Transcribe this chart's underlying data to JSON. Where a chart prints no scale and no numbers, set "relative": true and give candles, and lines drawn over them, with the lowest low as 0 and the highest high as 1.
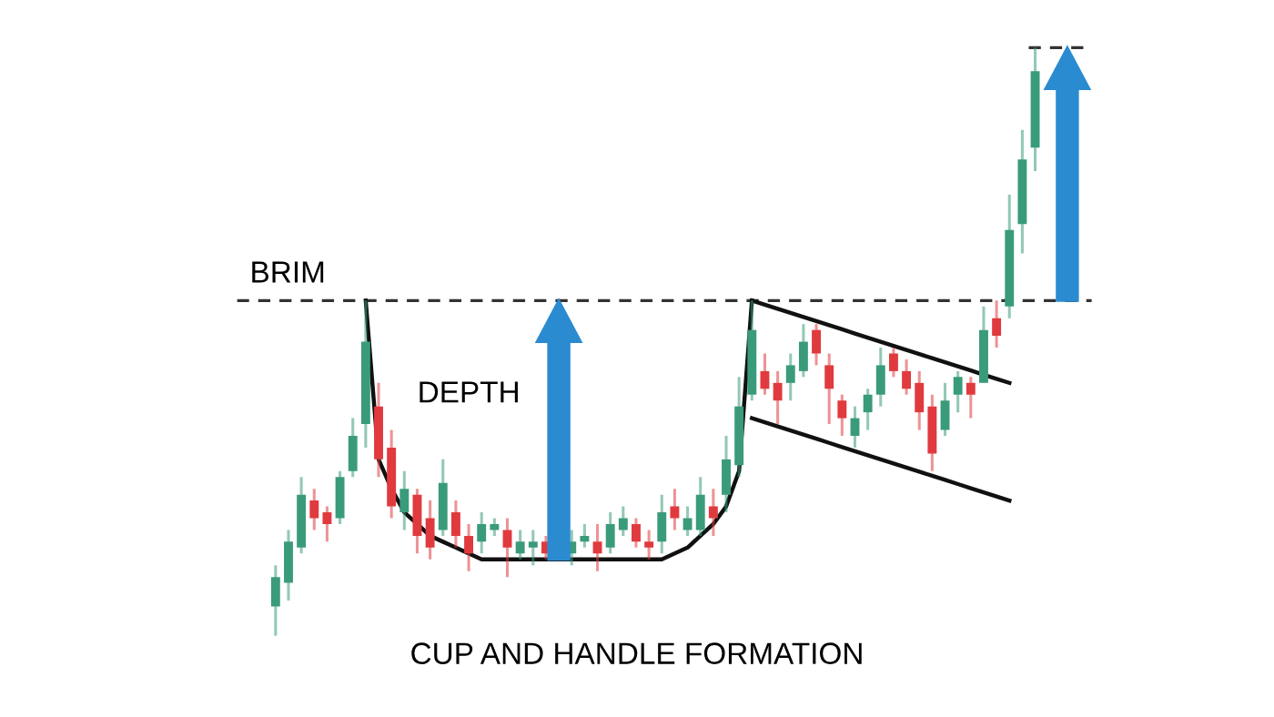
{
  "chart_data": {
    "type": "candlestick",
    "title": "CUP AND HANDLE FORMATION",
    "relative": true,
    "categories": [
      null,
      null,
      null,
      null,
      null,
      null,
      null,
      null,
      null,
      null,
      null,
      null,
      null,
      null,
      null,
      null,
      null,
      null,
      null,
      null,
      null,
      null,
      null,
      null,
      null,
      null,
      null,
      null,
      null,
      null,
      null,
      null,
      null,
      null,
      null,
      null,
      null,
      null,
      null,
      null,
      null,
      null,
      null,
      null,
      null,
      null,
      null,
      null,
      null,
      null,
      null,
      null,
      null,
      null,
      null,
      null,
      null,
      null,
      null,
      null
    ],
    "ohlc": [
      [
        0.05,
        0.12,
        0,
        0.1
      ],
      [
        0.09,
        0.18,
        0.06,
        0.16
      ],
      [
        0.15,
        0.27,
        0.14,
        0.24
      ],
      [
        0.23,
        0.25,
        0.18,
        0.2
      ],
      [
        0.21,
        0.22,
        0.16,
        0.19
      ],
      [
        0.2,
        0.28,
        0.19,
        0.27
      ],
      [
        0.28,
        0.37,
        0.27,
        0.34
      ],
      [
        0.36,
        0.57,
        0.32,
        0.5
      ],
      [
        0.39,
        0.43,
        0.27,
        0.3
      ],
      [
        0.32,
        0.35,
        0.2,
        0.22
      ],
      [
        0.21,
        0.28,
        0.18,
        0.25
      ],
      [
        0.24,
        0.25,
        0.14,
        0.17
      ],
      [
        0.2,
        0.23,
        0.13,
        0.15
      ],
      [
        0.18,
        0.3,
        0.17,
        0.26
      ],
      [
        0.21,
        0.23,
        0.15,
        0.17
      ],
      [
        0.17,
        0.19,
        0.11,
        0.14
      ],
      [
        0.16,
        0.21,
        0.14,
        0.19
      ],
      [
        0.18,
        0.2,
        0.17,
        0.19
      ],
      [
        0.18,
        0.2,
        0.1,
        0.15
      ],
      [
        0.14,
        0.18,
        0.13,
        0.16
      ],
      [
        0.15,
        0.18,
        0.12,
        0.16
      ],
      [
        0.16,
        0.17,
        0.13,
        0.14
      ],
      null,
      [
        0.14,
        0.18,
        0.12,
        0.16
      ],
      [
        0.16,
        0.19,
        0.15,
        0.17
      ],
      [
        0.16,
        0.19,
        0.11,
        0.14
      ],
      [
        0.15,
        0.21,
        0.14,
        0.19
      ],
      [
        0.18,
        0.22,
        0.17,
        0.2
      ],
      [
        0.19,
        0.2,
        0.15,
        0.16
      ],
      [
        0.16,
        0.18,
        0.13,
        0.15
      ],
      [
        0.16,
        0.24,
        0.14,
        0.21
      ],
      [
        0.22,
        0.25,
        0.18,
        0.2
      ],
      [
        0.18,
        0.22,
        0.17,
        0.2
      ],
      [
        0.18,
        0.27,
        0.17,
        0.24
      ],
      [
        0.22,
        0.25,
        0.17,
        0.2
      ],
      [
        0.24,
        0.34,
        0.21,
        0.3
      ],
      [
        0.29,
        0.44,
        0.27,
        0.39
      ],
      [
        0.41,
        0.57,
        0.4,
        0.52
      ],
      [
        0.45,
        0.48,
        0.41,
        0.42
      ],
      [
        0.43,
        0.45,
        0.36,
        0.4
      ],
      [
        0.43,
        0.48,
        0.4,
        0.46
      ],
      [
        0.45,
        0.53,
        0.44,
        0.5
      ],
      [
        0.52,
        0.53,
        0.46,
        0.48
      ],
      [
        0.46,
        0.48,
        0.36,
        0.42
      ],
      [
        0.4,
        0.41,
        0.34,
        0.37
      ],
      [
        0.34,
        0.39,
        0.32,
        0.37
      ],
      [
        0.38,
        0.42,
        0.35,
        0.41
      ],
      [
        0.41,
        0.49,
        0.39,
        0.46
      ],
      [
        0.48,
        0.49,
        0.44,
        0.45
      ],
      [
        0.45,
        0.47,
        0.41,
        0.42
      ],
      [
        0.43,
        0.45,
        0.35,
        0.38
      ],
      [
        0.39,
        0.41,
        0.28,
        0.31
      ],
      [
        0.35,
        0.43,
        0.34,
        0.4
      ],
      [
        0.41,
        0.45,
        0.38,
        0.44
      ],
      [
        0.43,
        0.44,
        0.37,
        0.41
      ],
      [
        0.43,
        0.56,
        0.43,
        0.52
      ],
      [
        0.54,
        0.57,
        0.49,
        0.51
      ],
      [
        0.56,
        0.75,
        0.54,
        0.69
      ],
      [
        0.7,
        0.86,
        0.65,
        0.81
      ],
      [
        0.83,
        1,
        0.79,
        0.96
      ]
    ],
    "colors": [
      "#3a9b7a",
      "#3a9b7a",
      "#3a9b7a",
      "#e03a3e",
      "#e03a3e",
      "#3a9b7a",
      "#3a9b7a",
      "#3a9b7a",
      "#e03a3e",
      "#e03a3e",
      "#3a9b7a",
      "#e03a3e",
      "#e03a3e",
      "#3a9b7a",
      "#e03a3e",
      "#e03a3e",
      "#3a9b7a",
      "#3a9b7a",
      "#e03a3e",
      "#3a9b7a",
      "#3a9b7a",
      "#e03a3e",
      null,
      "#3a9b7a",
      "#3a9b7a",
      "#e03a3e",
      "#3a9b7a",
      "#3a9b7a",
      "#e03a3e",
      "#e03a3e",
      "#3a9b7a",
      "#e03a3e",
      "#3a9b7a",
      "#3a9b7a",
      "#e03a3e",
      "#3a9b7a",
      "#3a9b7a",
      "#3a9b7a",
      "#e03a3e",
      "#e03a3e",
      "#3a9b7a",
      "#3a9b7a",
      "#e03a3e",
      "#e03a3e",
      "#e03a3e",
      "#3a9b7a",
      "#3a9b7a",
      "#3a9b7a",
      "#e03a3e",
      "#e03a3e",
      "#e03a3e",
      "#e03a3e",
      "#3a9b7a",
      "#3a9b7a",
      "#e03a3e",
      "#3a9b7a",
      "#e03a3e",
      "#3a9b7a",
      "#3a9b7a",
      "#3a9b7a"
    ],
    "series": [
      {
        "type": "line",
        "color": "#111111",
        "values": [
          null,
          null,
          null,
          null,
          null,
          null,
          null,
          0.57,
          0.3,
          0.25,
          0.21,
          0.19,
          0.17,
          0.16,
          0.15,
          0.14,
          0.13,
          0.13,
          0.13,
          0.13,
          0.13,
          0.13,
          0.13,
          0.13,
          0.13,
          0.13,
          0.13,
          0.13,
          0.13,
          0.13,
          0.13,
          0.14,
          0.15,
          0.17,
          0.19,
          0.22,
          0.28,
          0.57,
          null,
          null,
          null,
          null,
          null,
          null,
          null,
          null,
          null,
          null,
          null,
          null,
          null,
          null,
          null,
          null,
          null,
          null,
          null,
          null,
          null,
          null
        ]
      },
      {
        "type": "line",
        "color": "#111111",
        "values": [
          null,
          null,
          null,
          null,
          null,
          null,
          null,
          null,
          null,
          null,
          null,
          null,
          null,
          null,
          null,
          null,
          null,
          null,
          null,
          null,
          null,
          null,
          null,
          null,
          null,
          null,
          null,
          null,
          null,
          null,
          null,
          null,
          null,
          null,
          null,
          null,
          null,
          0.57,
          0.563,
          0.556,
          0.549,
          0.542,
          0.535,
          0.528,
          0.521,
          0.514,
          0.507,
          0.5,
          0.493,
          0.486,
          0.479,
          0.472,
          0.465,
          0.458,
          0.451,
          0.444,
          0.437,
          0.43,
          null,
          null
        ]
      },
      {
        "type": "line",
        "color": "#111111",
        "values": [
          null,
          null,
          null,
          null,
          null,
          null,
          null,
          null,
          null,
          null,
          null,
          null,
          null,
          null,
          null,
          null,
          null,
          null,
          null,
          null,
          null,
          null,
          null,
          null,
          null,
          null,
          null,
          null,
          null,
          null,
          null,
          null,
          null,
          null,
          null,
          null,
          null,
          0.37,
          0.363,
          0.356,
          0.349,
          0.342,
          0.335,
          0.328,
          0.321,
          0.314,
          0.307,
          0.3,
          0.293,
          0.286,
          0.279,
          0.272,
          0.265,
          0.258,
          0.251,
          0.244,
          0.237,
          0.23,
          null,
          null
        ]
      }
    ],
    "ref_lines": [
      {
        "axis": "y",
        "value": 0.57,
        "label": "BRIM",
        "color": "#333333",
        "line_style": "dashed"
      }
    ],
    "annotations": [
      "DEPTH"
    ]
  }
}
